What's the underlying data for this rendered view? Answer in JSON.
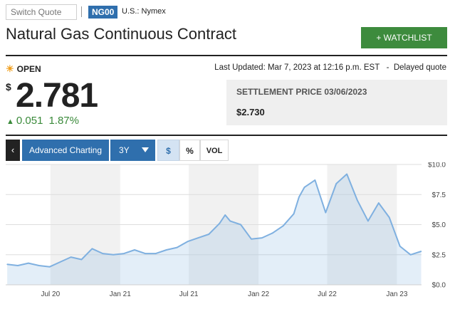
{
  "header": {
    "search_placeholder": "Switch Quote",
    "symbol": "NG00",
    "exchange": "U.S.: Nymex",
    "title": "Natural Gas Continuous Contract",
    "watchlist_label": "+ WATCHLIST"
  },
  "quote": {
    "status": "OPEN",
    "last_updated": "Last Updated: Mar 7, 2023 at 12:16 p.m. EST   -  Delayed quote",
    "currency_symbol": "$",
    "price": "2.781",
    "change": "0.051",
    "change_pct": "1.87%",
    "change_color": "#3a8a3a",
    "settlement_label": "SETTLEMENT PRICE 03/06/2023",
    "settlement_value": "$2.730"
  },
  "toolbar": {
    "back_label": "‹",
    "advanced_label": "Advanced Charting",
    "range_label": "3Y",
    "mode_dollar": "$",
    "mode_pct": "%",
    "mode_vol": "VOL"
  },
  "colors": {
    "accent_blue": "#2f6fad",
    "watchlist_green": "#3d8b3d",
    "line": "#7fb0e0"
  },
  "chart_data": {
    "type": "area",
    "title": "",
    "xlabel": "",
    "ylabel": "",
    "ylim": [
      0,
      10
    ],
    "y_ticks": [
      "$10.0",
      "$7.5",
      "$5.0",
      "$2.5",
      "$0.0"
    ],
    "x_ticks": [
      "Jul 20",
      "Jan 21",
      "Jul 21",
      "Jan 22",
      "Jul 22",
      "Jan 23"
    ],
    "grid": true,
    "series": [
      {
        "x": [
          "2020-03-09",
          "2020-04-06",
          "2020-05-04",
          "2020-06-01",
          "2020-06-29",
          "2020-07-27",
          "2020-08-24",
          "2020-09-21",
          "2020-10-19",
          "2020-11-16",
          "2020-12-14",
          "2021-01-11",
          "2021-02-08",
          "2021-03-08",
          "2021-04-05",
          "2021-05-03",
          "2021-05-31",
          "2021-06-28",
          "2021-07-26",
          "2021-08-23",
          "2021-09-20",
          "2021-10-05",
          "2021-10-18",
          "2021-11-15",
          "2021-12-13",
          "2022-01-10",
          "2022-02-07",
          "2022-03-07",
          "2022-04-04",
          "2022-04-18",
          "2022-05-02",
          "2022-05-30",
          "2022-06-27",
          "2022-07-25",
          "2022-08-22",
          "2022-09-19",
          "2022-10-17",
          "2022-11-14",
          "2022-12-12",
          "2023-01-09",
          "2023-02-06",
          "2023-03-06"
        ],
        "values": [
          1.7,
          1.6,
          1.8,
          1.6,
          1.5,
          1.9,
          2.3,
          2.1,
          3.0,
          2.6,
          2.5,
          2.6,
          2.9,
          2.6,
          2.6,
          2.9,
          3.1,
          3.6,
          3.9,
          4.2,
          5.1,
          5.8,
          5.3,
          5.0,
          3.8,
          3.9,
          4.3,
          4.9,
          5.9,
          7.3,
          8.1,
          8.7,
          6.0,
          8.4,
          9.2,
          7.0,
          5.3,
          6.8,
          5.6,
          3.2,
          2.5,
          2.78
        ]
      }
    ]
  }
}
